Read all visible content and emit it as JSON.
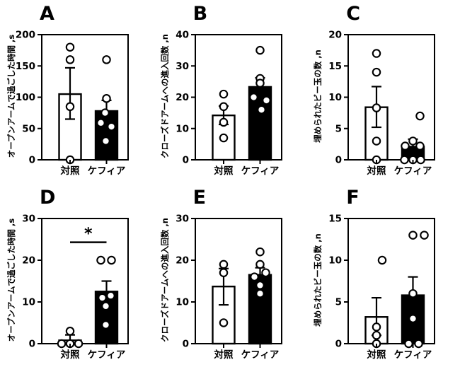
{
  "figure": {
    "background": "#ffffff",
    "bar_outline_color": "#000000",
    "control_fill": "#ffffff",
    "kefir_fill": "#000000"
  },
  "chart_data": [
    {
      "type": "bar",
      "panel_letter": "A",
      "ylabel": "オープンアームで過ごした時間 ,s",
      "ylim": [
        0,
        200
      ],
      "yticks": [
        0,
        50,
        100,
        150,
        200
      ],
      "categories": [
        "対照",
        "ケフィア"
      ],
      "series": [
        {
          "name": "対照",
          "fill": "#ffffff",
          "mean": 105,
          "err_low": 65,
          "err_high": 147,
          "points": [
            {
              "v": 180,
              "dx": 0
            },
            {
              "v": 160,
              "dx": 0
            },
            {
              "v": 85,
              "dx": 0
            },
            {
              "v": 0,
              "dx": 0
            }
          ]
        },
        {
          "name": "ケフィア",
          "fill": "#000000",
          "mean": 78,
          "err_low": null,
          "err_high": 95,
          "points": [
            {
              "v": 160,
              "dx": 0
            },
            {
              "v": 98,
              "dx": 0
            },
            {
              "v": 75,
              "dx": -2
            },
            {
              "v": 59,
              "dx": -8
            },
            {
              "v": 53,
              "dx": 7
            },
            {
              "v": 30,
              "dx": -1
            }
          ]
        }
      ],
      "significance": null
    },
    {
      "type": "bar",
      "panel_letter": "B",
      "ylabel": "クローズドアームへの進入回数 ,n",
      "ylim": [
        0,
        40
      ],
      "yticks": [
        0,
        10,
        20,
        30,
        40
      ],
      "categories": [
        "対照",
        "ケフィア"
      ],
      "series": [
        {
          "name": "対照",
          "fill": "#ffffff",
          "mean": 14.2,
          "err_low": 11.3,
          "err_high": 17.2,
          "points": [
            {
              "v": 21,
              "dx": 0
            },
            {
              "v": 17,
              "dx": 0
            },
            {
              "v": 12,
              "dx": 0
            },
            {
              "v": 7,
              "dx": 0
            }
          ]
        },
        {
          "name": "ケフィア",
          "fill": "#000000",
          "mean": 23.3,
          "err_low": null,
          "err_high": 26.2,
          "points": [
            {
              "v": 35,
              "dx": 0
            },
            {
              "v": 26,
              "dx": 0
            },
            {
              "v": 24.5,
              "dx": 0
            },
            {
              "v": 20,
              "dx": -9
            },
            {
              "v": 19,
              "dx": 9
            },
            {
              "v": 16,
              "dx": 2
            }
          ]
        }
      ],
      "significance": null
    },
    {
      "type": "bar",
      "panel_letter": "C",
      "ylabel": "埋められたビー玉の数 ,n",
      "ylim": [
        0,
        20
      ],
      "yticks": [
        0,
        5,
        10,
        15,
        20
      ],
      "categories": [
        "対照",
        "ケフィア"
      ],
      "series": [
        {
          "name": "対照",
          "fill": "#ffffff",
          "mean": 8.4,
          "err_low": 5.2,
          "err_high": 11.7,
          "points": [
            {
              "v": 17,
              "dx": 0
            },
            {
              "v": 14,
              "dx": 0
            },
            {
              "v": 8.3,
              "dx": 0
            },
            {
              "v": 3,
              "dx": 0
            },
            {
              "v": 0,
              "dx": 0
            }
          ]
        },
        {
          "name": "ケフィア",
          "fill": "#000000",
          "mean": 2.1,
          "err_low": null,
          "err_high": 3.3,
          "points": [
            {
              "v": 7,
              "dx": 10
            },
            {
              "v": 3,
              "dx": 0
            },
            {
              "v": 2.2,
              "dx": -11
            },
            {
              "v": 2.2,
              "dx": 10
            },
            {
              "v": 0,
              "dx": -12
            },
            {
              "v": 0,
              "dx": 0
            },
            {
              "v": 0,
              "dx": 11
            }
          ]
        }
      ],
      "significance": null
    },
    {
      "type": "bar",
      "panel_letter": "D",
      "ylabel": "オープンアームで過ごした時間 ,s",
      "ylim": [
        0,
        30
      ],
      "yticks": [
        0,
        10,
        20,
        30
      ],
      "categories": [
        "対照",
        "ケフィア"
      ],
      "series": [
        {
          "name": "対照",
          "fill": "#ffffff",
          "mean": 0.8,
          "err_low": null,
          "err_high": 2.1,
          "points": [
            {
              "v": 3,
              "dx": 0
            },
            {
              "v": 0,
              "dx": -12
            },
            {
              "v": 0,
              "dx": 0
            },
            {
              "v": 0,
              "dx": 12
            }
          ]
        },
        {
          "name": "ケフィア",
          "fill": "#000000",
          "mean": 12.5,
          "err_low": null,
          "err_high": 15,
          "points": [
            {
              "v": 20,
              "dx": -8
            },
            {
              "v": 20,
              "dx": 7
            },
            {
              "v": 11,
              "dx": -6
            },
            {
              "v": 11.5,
              "dx": 6
            },
            {
              "v": 9,
              "dx": -1
            },
            {
              "v": 4.5,
              "dx": -1
            }
          ]
        }
      ],
      "significance": {
        "label": "*",
        "y": 24.3
      }
    },
    {
      "type": "bar",
      "panel_letter": "E",
      "ylabel": "クローズドアームへの進入回数 ,n",
      "ylim": [
        0,
        30
      ],
      "yticks": [
        0,
        10,
        20,
        30
      ],
      "categories": [
        "対照",
        "ケフィア"
      ],
      "series": [
        {
          "name": "対照",
          "fill": "#ffffff",
          "mean": 13.7,
          "err_low": 9.3,
          "err_high": 18,
          "points": [
            {
              "v": 19,
              "dx": 0
            },
            {
              "v": 17,
              "dx": 0
            },
            {
              "v": 5,
              "dx": 0
            }
          ]
        },
        {
          "name": "ケフィア",
          "fill": "#000000",
          "mean": 16.5,
          "err_low": null,
          "err_high": 18.2,
          "points": [
            {
              "v": 22,
              "dx": 0
            },
            {
              "v": 19,
              "dx": 0
            },
            {
              "v": 17,
              "dx": 8
            },
            {
              "v": 16,
              "dx": -8
            },
            {
              "v": 14,
              "dx": 0
            },
            {
              "v": 12,
              "dx": 0
            }
          ]
        }
      ],
      "significance": null
    },
    {
      "type": "bar",
      "panel_letter": "F",
      "ylabel": "埋められたビー玉の数 ,n",
      "ylim": [
        0,
        15
      ],
      "yticks": [
        0,
        5,
        10,
        15
      ],
      "categories": [
        "対照",
        "ケフィア"
      ],
      "series": [
        {
          "name": "対照",
          "fill": "#ffffff",
          "mean": 3.2,
          "err_low": 1,
          "err_high": 5.5,
          "points": [
            {
              "v": 10,
              "dx": 8
            },
            {
              "v": 2,
              "dx": 0
            },
            {
              "v": 1,
              "dx": 0
            },
            {
              "v": 0,
              "dx": 0
            }
          ]
        },
        {
          "name": "ケフィア",
          "fill": "#000000",
          "mean": 5.8,
          "err_low": null,
          "err_high": 8,
          "points": [
            {
              "v": 13,
              "dx": 0
            },
            {
              "v": 13,
              "dx": 16
            },
            {
              "v": 6,
              "dx": 0
            },
            {
              "v": 3,
              "dx": 0
            },
            {
              "v": 0,
              "dx": -6
            },
            {
              "v": 0,
              "dx": 8
            }
          ]
        }
      ],
      "significance": null
    }
  ]
}
